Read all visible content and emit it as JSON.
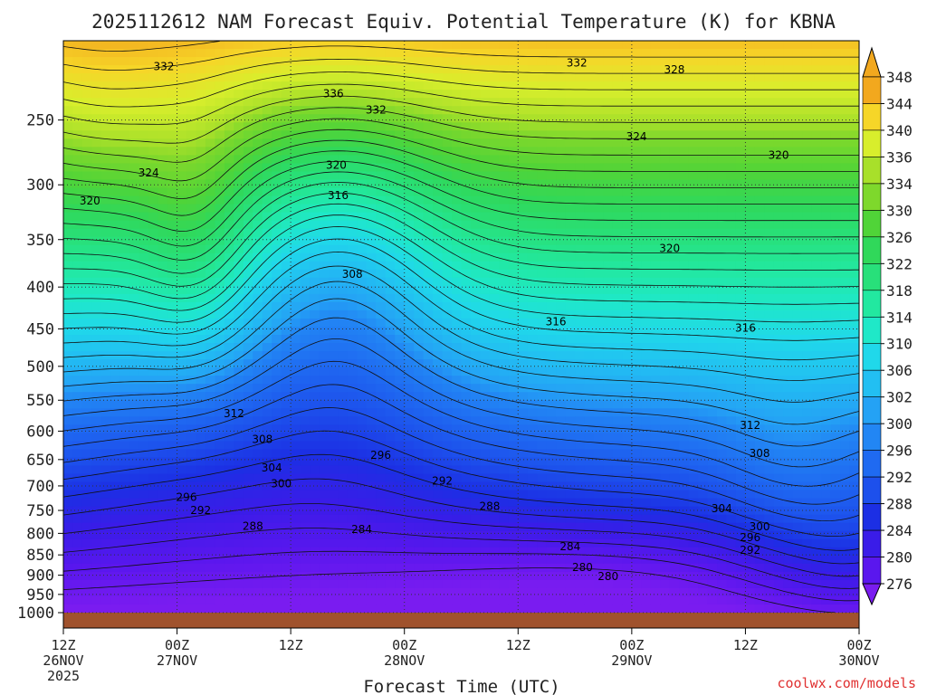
{
  "chart_data": {
    "type": "heatmap",
    "title": "2025112612 NAM Forecast Equiv. Potential Temperature (K) for KBNA",
    "xlabel": "Forecast Time (UTC)",
    "ylabel": "",
    "credit": "coolwx.com/models",
    "y_scale": "log-pressure",
    "y_range": [
      1000,
      200
    ],
    "y_ticks": [
      {
        "p": 250,
        "label": "250"
      },
      {
        "p": 300,
        "label": "300"
      },
      {
        "p": 350,
        "label": "350"
      },
      {
        "p": 400,
        "label": "400"
      },
      {
        "p": 450,
        "label": "450"
      },
      {
        "p": 500,
        "label": "500"
      },
      {
        "p": 550,
        "label": "550"
      },
      {
        "p": 600,
        "label": "600"
      },
      {
        "p": 650,
        "label": "650"
      },
      {
        "p": 700,
        "label": "700"
      },
      {
        "p": 750,
        "label": "750"
      },
      {
        "p": 800,
        "label": "800"
      },
      {
        "p": 850,
        "label": "850"
      },
      {
        "p": 900,
        "label": "900"
      },
      {
        "p": 950,
        "label": "950"
      },
      {
        "p": 1000,
        "label": "1000"
      }
    ],
    "x_ticks": [
      {
        "h": 0,
        "lines": [
          "12Z",
          "26NOV",
          "2025"
        ]
      },
      {
        "h": 12,
        "lines": [
          "00Z",
          "27NOV"
        ]
      },
      {
        "h": 24,
        "lines": [
          "12Z"
        ]
      },
      {
        "h": 36,
        "lines": [
          "00Z",
          "28NOV"
        ]
      },
      {
        "h": 48,
        "lines": [
          "12Z"
        ]
      },
      {
        "h": 60,
        "lines": [
          "00Z",
          "29NOV"
        ]
      },
      {
        "h": 72,
        "lines": [
          "12Z"
        ]
      },
      {
        "h": 84,
        "lines": [
          "00Z",
          "30NOV"
        ]
      }
    ],
    "x_range_hours": [
      0,
      84
    ],
    "colorbar": {
      "levels": [
        276,
        280,
        284,
        288,
        292,
        296,
        300,
        302,
        306,
        310,
        314,
        318,
        322,
        326,
        330,
        334,
        336,
        340,
        344,
        348
      ],
      "colors": [
        "#7a1cf0",
        "#5a17ee",
        "#3a1ce8",
        "#1c2fe4",
        "#1d50ec",
        "#1f6af1",
        "#2286f4",
        "#24a2f5",
        "#22bff2",
        "#20d8ea",
        "#1fe8c8",
        "#22e8a0",
        "#28e07a",
        "#30d85a",
        "#50d438",
        "#7ed82c",
        "#a8e02a",
        "#d8ee2c",
        "#f6d628",
        "#f2a81e"
      ]
    },
    "contour_labels": [
      {
        "v": "332",
        "h": 10.6,
        "p": 215
      },
      {
        "v": "336",
        "h": 28.5,
        "p": 232
      },
      {
        "v": "332",
        "h": 33.0,
        "p": 243
      },
      {
        "v": "332",
        "h": 54.2,
        "p": 213
      },
      {
        "v": "328",
        "h": 64.5,
        "p": 217
      },
      {
        "v": "324",
        "h": 60.5,
        "p": 262
      },
      {
        "v": "320",
        "h": 75.5,
        "p": 276
      },
      {
        "v": "324",
        "h": 9.0,
        "p": 290
      },
      {
        "v": "320",
        "h": 2.8,
        "p": 314
      },
      {
        "v": "320",
        "h": 28.8,
        "p": 284
      },
      {
        "v": "316",
        "h": 29.0,
        "p": 309
      },
      {
        "v": "320",
        "h": 64.0,
        "p": 359
      },
      {
        "v": "308",
        "h": 30.5,
        "p": 386
      },
      {
        "v": "316",
        "h": 52.0,
        "p": 441
      },
      {
        "v": "316",
        "h": 72.0,
        "p": 449
      },
      {
        "v": "312",
        "h": 18.0,
        "p": 571
      },
      {
        "v": "312",
        "h": 72.5,
        "p": 590
      },
      {
        "v": "308",
        "h": 21.0,
        "p": 614
      },
      {
        "v": "308",
        "h": 73.5,
        "p": 639
      },
      {
        "v": "304",
        "h": 22.0,
        "p": 665
      },
      {
        "v": "296",
        "h": 33.5,
        "p": 642
      },
      {
        "v": "300",
        "h": 23.0,
        "p": 696
      },
      {
        "v": "292",
        "h": 40.0,
        "p": 690
      },
      {
        "v": "296",
        "h": 13.0,
        "p": 723
      },
      {
        "v": "292",
        "h": 14.5,
        "p": 750
      },
      {
        "v": "288",
        "h": 45.0,
        "p": 741
      },
      {
        "v": "304",
        "h": 69.5,
        "p": 746
      },
      {
        "v": "288",
        "h": 20.0,
        "p": 784
      },
      {
        "v": "284",
        "h": 31.5,
        "p": 791
      },
      {
        "v": "300",
        "h": 73.5,
        "p": 785
      },
      {
        "v": "296",
        "h": 72.5,
        "p": 809
      },
      {
        "v": "284",
        "h": 53.5,
        "p": 830
      },
      {
        "v": "292",
        "h": 72.5,
        "p": 839
      },
      {
        "v": "280",
        "h": 54.8,
        "p": 880
      },
      {
        "v": "280",
        "h": 57.5,
        "p": 903
      }
    ]
  }
}
